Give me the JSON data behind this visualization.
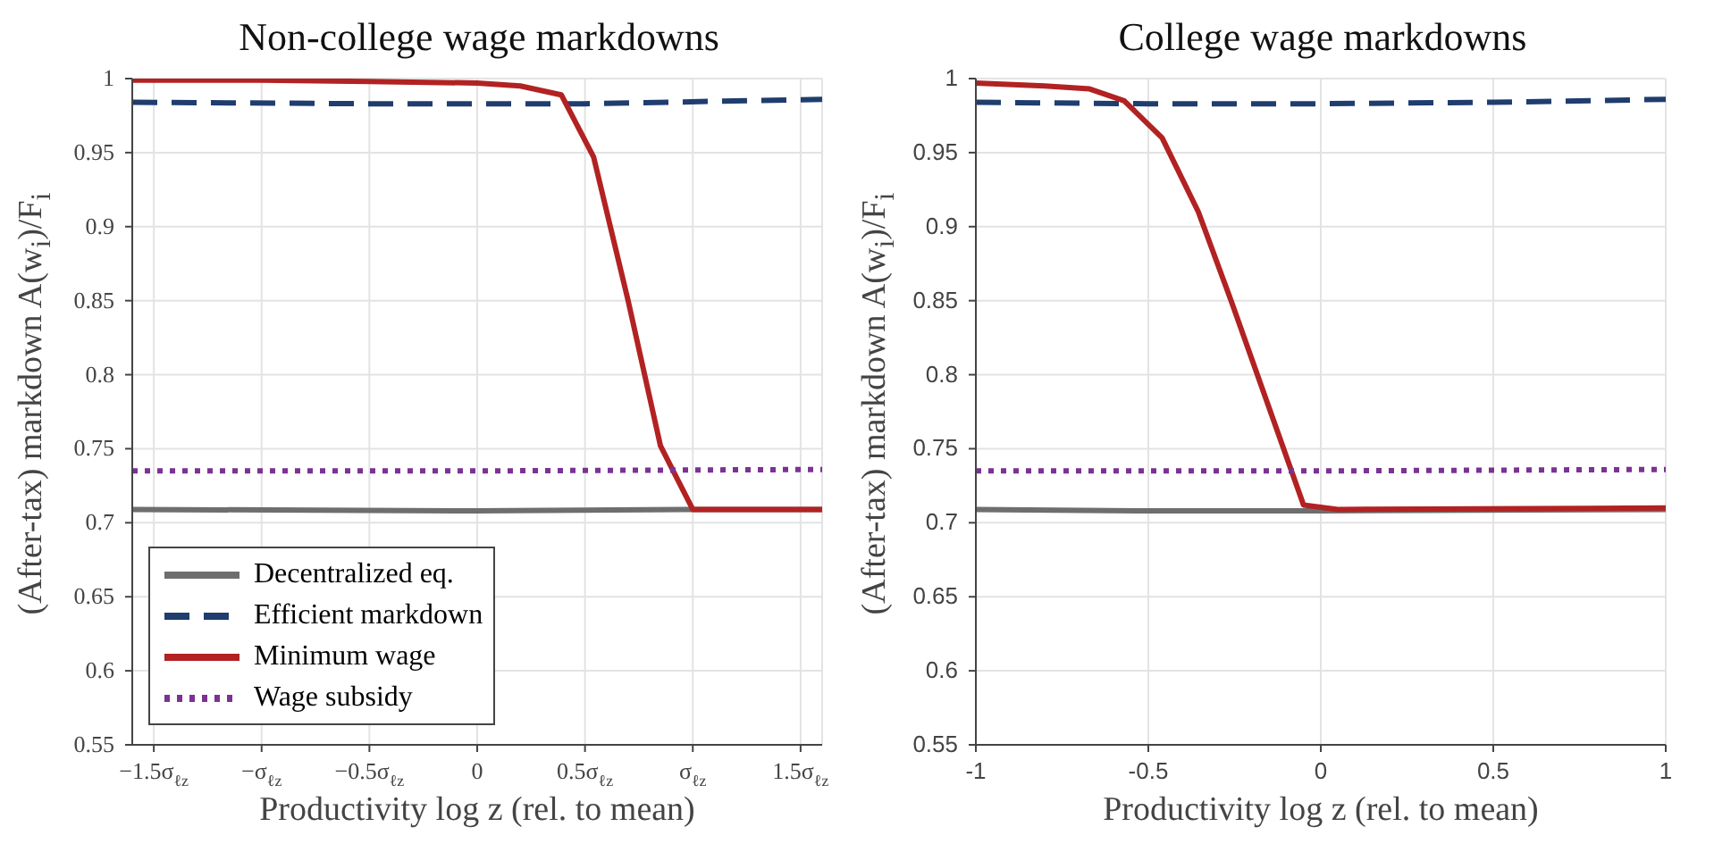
{
  "chart_data": [
    {
      "type": "line",
      "title": "Non-college wage markdowns",
      "xlabel": "Productivity log z (rel. to mean)",
      "ylabel": "(After-tax) markdown A(w$_{i}$)/F$_{i}$",
      "xlim": [
        -1.6,
        1.6
      ],
      "xticks": [
        {
          "value": -1.5,
          "label": "−1.5σ$_{ℓz}$"
        },
        {
          "value": -1,
          "label": "−σ$_{ℓz}$"
        },
        {
          "value": -0.5,
          "label": "−0.5σ$_{ℓz}$"
        },
        0,
        {
          "value": 0.5,
          "label": "0.5σ$_{ℓz}$"
        },
        {
          "value": 1,
          "label": "σ$_{ℓz}$"
        },
        {
          "value": 1.5,
          "label": "1.5σ$_{ℓz}$"
        }
      ],
      "ylim": [
        0.55,
        1
      ],
      "yticks": [
        0.55,
        0.6,
        0.65,
        0.7,
        0.75,
        0.8,
        0.85,
        0.9,
        0.95,
        1
      ],
      "grid": true,
      "legend": "bottom left",
      "series": [
        {
          "name": "Decentralized eq.",
          "color": "#6e6e6e",
          "line_style": "solid",
          "x": [
            -1.6,
            0,
            1,
            1.6
          ],
          "values": [
            0.709,
            0.708,
            0.709,
            0.709
          ]
        },
        {
          "name": "Efficient markdown",
          "color": "#1f3d6e",
          "line_style": "dashed",
          "x": [
            -1.6,
            -0.5,
            0.5,
            1.6
          ],
          "values": [
            0.984,
            0.983,
            0.983,
            0.986
          ]
        },
        {
          "name": "Minimum wage",
          "color": "#b22222",
          "line_style": "solid",
          "x": [
            -1.6,
            -1,
            -0.5,
            0,
            0.2,
            0.39,
            0.54,
            0.7,
            0.85,
            1,
            1.6
          ],
          "values": [
            0.999,
            0.999,
            0.998,
            0.997,
            0.995,
            0.989,
            0.947,
            0.85,
            0.752,
            0.709,
            0.709
          ]
        },
        {
          "name": "Wage subsidy",
          "color": "#7b3294",
          "line_style": "dotted",
          "x": [
            -1.6,
            0,
            1.6
          ],
          "values": [
            0.735,
            0.735,
            0.736
          ]
        }
      ]
    },
    {
      "type": "line",
      "title": "College wage markdowns",
      "xlabel": "Productivity log z (rel. to mean)",
      "ylabel": "(After-tax) markdown A(w$_{i}$)/F$_{i}$",
      "xlim": [
        -1,
        1
      ],
      "xticks": [
        -1,
        -0.5,
        0,
        0.5,
        1
      ],
      "ylim": [
        0.55,
        1
      ],
      "yticks": [
        0.55,
        0.6,
        0.65,
        0.7,
        0.75,
        0.8,
        0.85,
        0.9,
        0.95,
        1
      ],
      "grid": true,
      "series": [
        {
          "color": "#6e6e6e",
          "line_style": "solid",
          "x": [
            -1,
            -0.5,
            0,
            1
          ],
          "values": [
            0.709,
            0.708,
            0.708,
            0.709
          ]
        },
        {
          "color": "#1f3d6e",
          "line_style": "dashed",
          "x": [
            -1,
            -0.5,
            0,
            0.5,
            1
          ],
          "values": [
            0.984,
            0.983,
            0.983,
            0.984,
            0.986
          ]
        },
        {
          "color": "#b22222",
          "line_style": "solid",
          "x": [
            -1,
            -0.8,
            -0.67,
            -0.57,
            -0.46,
            -0.355,
            -0.26,
            -0.05,
            0.05,
            1
          ],
          "values": [
            0.997,
            0.995,
            0.993,
            0.985,
            0.96,
            0.91,
            0.85,
            0.712,
            0.709,
            0.71
          ]
        },
        {
          "color": "#7b3294",
          "line_style": "dotted",
          "x": [
            -1,
            0,
            1
          ],
          "values": [
            0.735,
            0.735,
            0.736
          ]
        }
      ]
    }
  ]
}
